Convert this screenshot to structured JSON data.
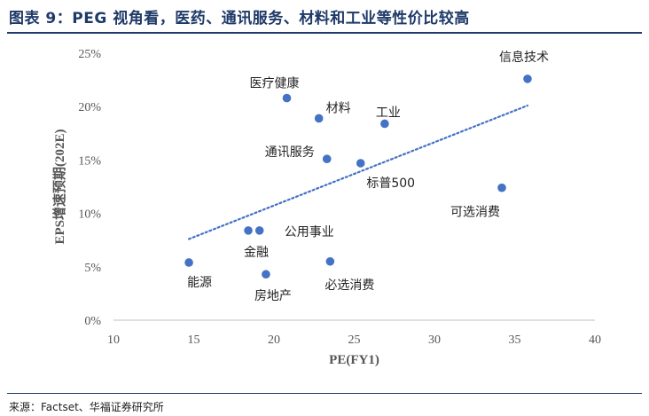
{
  "header": {
    "title": "图表 9：PEG 视角看，医药、通讯服务、材料和工业等性价比较高"
  },
  "footer": {
    "source": "来源：Factset、华福证券研究所"
  },
  "chart_data": {
    "type": "scatter",
    "title": "",
    "xlabel": "PE(FY1)",
    "ylabel": "EPS增速预期(202E)",
    "xlim": [
      10,
      40
    ],
    "ylim": [
      0,
      25
    ],
    "x_ticks": [
      "10",
      "15",
      "20",
      "25",
      "30",
      "35",
      "40"
    ],
    "y_ticks": [
      "0%",
      "5%",
      "10%",
      "15%",
      "20%",
      "25%"
    ],
    "grid": false,
    "legend": "none",
    "point_color": "#4472c4",
    "trendline": {
      "style": "dotted",
      "from": [
        14.7,
        7.6
      ],
      "to": [
        35.8,
        20.1
      ]
    },
    "points": [
      {
        "label": "信息技术",
        "x": 35.8,
        "y": 22.6
      },
      {
        "label": "医疗健康",
        "x": 20.8,
        "y": 20.8
      },
      {
        "label": "材料",
        "x": 22.8,
        "y": 18.9
      },
      {
        "label": "工业",
        "x": 26.9,
        "y": 18.4
      },
      {
        "label": "通讯服务",
        "x": 23.3,
        "y": 15.1
      },
      {
        "label": "标普500",
        "x": 25.4,
        "y": 14.7
      },
      {
        "label": "可选消费",
        "x": 34.2,
        "y": 12.4
      },
      {
        "label": "金融",
        "x": 18.4,
        "y": 8.4
      },
      {
        "label": "公用事业",
        "x": 19.1,
        "y": 8.4
      },
      {
        "label": "能源",
        "x": 14.7,
        "y": 5.4
      },
      {
        "label": "房地产",
        "x": 19.5,
        "y": 4.3
      },
      {
        "label": "必选消费",
        "x": 23.5,
        "y": 5.5
      }
    ]
  }
}
